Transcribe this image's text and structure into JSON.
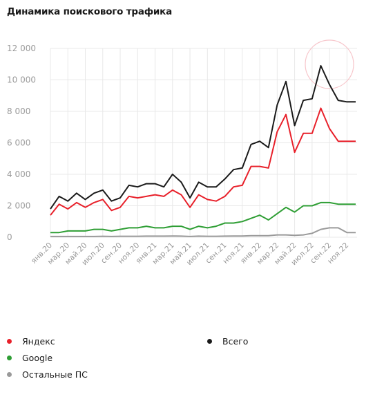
{
  "title": "Динамика поискового трафика",
  "chart_data": {
    "type": "line",
    "title": "Динамика поискового трафика",
    "ylim": [
      0,
      12000
    ],
    "yticks": [
      "12 000",
      "10 000",
      "8 000",
      "6 000",
      "4 000",
      "2 000",
      "0"
    ],
    "ytick_values": [
      12000,
      10000,
      8000,
      6000,
      4000,
      2000,
      0
    ],
    "grid": "vertical and horizontal",
    "legend_position": "bottom",
    "x": [
      "янв.20",
      "фев.20",
      "мар.20",
      "апр.20",
      "май.20",
      "июн.20",
      "июл.20",
      "авг.20",
      "сен.20",
      "окт.20",
      "ноя.20",
      "дек.20",
      "янв.21",
      "фев.21",
      "мар.21",
      "апр.21",
      "май.21",
      "июн.21",
      "июл.21",
      "авг.21",
      "сен.21",
      "окт.21",
      "ноя.21",
      "дек.21",
      "янв.22",
      "фев.22",
      "мар.22",
      "апр.22",
      "май.22",
      "июн.22",
      "июл.22",
      "авг.22",
      "сен.22",
      "окт.22",
      "ноя.22",
      "дек.22"
    ],
    "x_tick_labels": [
      "янв.20",
      "мар.20",
      "май.20",
      "июл.20",
      "сен.20",
      "ноя.20",
      "янв.21",
      "мар.21",
      "май.21",
      "июл.21",
      "сен.21",
      "ноя.21",
      "янв.22",
      "мар.22",
      "май.22",
      "июл.22",
      "сен.22",
      "ноя.22"
    ],
    "series": [
      {
        "name": "Всего",
        "color": "#1a1a1a",
        "values": [
          1800,
          2600,
          2300,
          2800,
          2400,
          2800,
          3000,
          2300,
          2500,
          3300,
          3200,
          3400,
          3400,
          3200,
          4000,
          3500,
          2500,
          3500,
          3200,
          3200,
          3700,
          4300,
          4400,
          5900,
          6100,
          5700,
          8400,
          9900,
          7100,
          8700,
          8800,
          10900,
          9700,
          8700,
          8600,
          8600
        ]
      },
      {
        "name": "Яндекс",
        "color": "#e8202a",
        "values": [
          1400,
          2100,
          1800,
          2200,
          1900,
          2200,
          2400,
          1700,
          1900,
          2600,
          2500,
          2600,
          2700,
          2600,
          3000,
          2700,
          1900,
          2700,
          2400,
          2300,
          2600,
          3200,
          3300,
          4500,
          4500,
          4400,
          6700,
          7800,
          5400,
          6600,
          6600,
          8200,
          6900,
          6100,
          6100,
          6100
        ]
      },
      {
        "name": "Google",
        "color": "#2e9e34",
        "values": [
          300,
          300,
          400,
          400,
          400,
          500,
          500,
          400,
          500,
          600,
          600,
          700,
          600,
          600,
          700,
          700,
          500,
          700,
          600,
          700,
          900,
          900,
          1000,
          1200,
          1400,
          1100,
          1500,
          1900,
          1600,
          2000,
          2000,
          2200,
          2200,
          2100,
          2100,
          2100
        ]
      },
      {
        "name": "Остальные ПС",
        "color": "#9a9a9a",
        "values": [
          50,
          50,
          50,
          50,
          50,
          50,
          60,
          50,
          60,
          60,
          60,
          70,
          70,
          70,
          80,
          70,
          50,
          70,
          60,
          60,
          70,
          80,
          80,
          100,
          100,
          100,
          150,
          150,
          120,
          150,
          250,
          500,
          600,
          600,
          300,
          300
        ]
      }
    ]
  },
  "legend": {
    "left": [
      {
        "label": "Яндекс",
        "color": "#e8202a"
      },
      {
        "label": "Google",
        "color": "#2e9e34"
      },
      {
        "label": "Остальные ПС",
        "color": "#9a9a9a"
      }
    ],
    "right": [
      {
        "label": "Всего",
        "color": "#1a1a1a"
      }
    ]
  },
  "colors": {
    "grid": "#e8e8e8",
    "highlight": "#f7c6cb"
  }
}
